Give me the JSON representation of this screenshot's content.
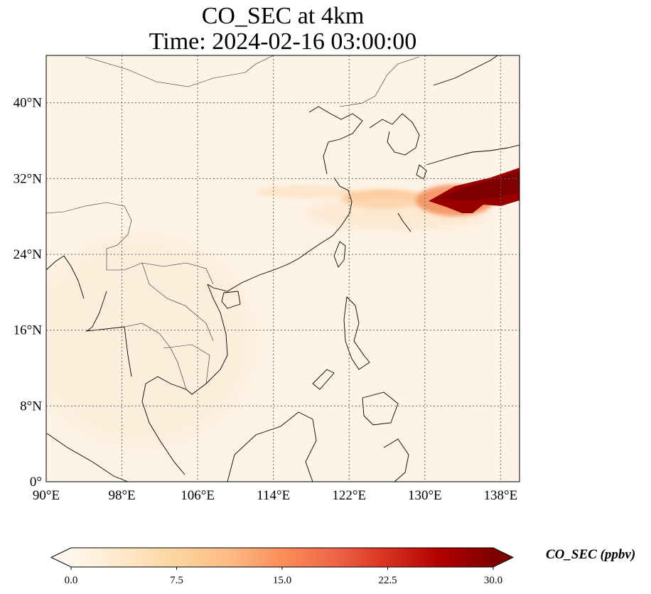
{
  "title": {
    "line1": "CO_SEC at 4km",
    "line2": "Time: 2024-02-16 03:00:00"
  },
  "map": {
    "projection": "PlateCarree",
    "lon_range": [
      90,
      140
    ],
    "lat_range": [
      0,
      45
    ],
    "gridlines": "dotted",
    "lon_ticks": [
      {
        "value": 90,
        "label": "90°E"
      },
      {
        "value": 98,
        "label": "98°E"
      },
      {
        "value": 106,
        "label": "106°E"
      },
      {
        "value": 114,
        "label": "114°E"
      },
      {
        "value": 122,
        "label": "122°E"
      },
      {
        "value": 130,
        "label": "130°E"
      },
      {
        "value": 138,
        "label": "138°E"
      }
    ],
    "lat_ticks": [
      {
        "value": 0,
        "label": "0°"
      },
      {
        "value": 8,
        "label": "8°N"
      },
      {
        "value": 16,
        "label": "16°N"
      },
      {
        "value": 24,
        "label": "24°N"
      },
      {
        "value": 32,
        "label": "32°N"
      },
      {
        "value": 40,
        "label": "40°N"
      }
    ],
    "background_color": "#fdf3e6",
    "coastline_color": "#000000"
  },
  "colorbar": {
    "label": "CO_SEC (ppbv)",
    "colormap": "OrRd",
    "min": 0,
    "max": 30,
    "extend": "both",
    "ticks": [
      {
        "value": 0,
        "label": "0.0"
      },
      {
        "value": 7.5,
        "label": "7.5"
      },
      {
        "value": 15,
        "label": "15.0"
      },
      {
        "value": 22.5,
        "label": "22.5"
      },
      {
        "value": 30,
        "label": "30.0"
      }
    ],
    "stops": [
      "#fff7ec",
      "#fee8c8",
      "#fdd49e",
      "#fdbb84",
      "#fc8d59",
      "#ef6548",
      "#d7301f",
      "#b30000",
      "#7f0000"
    ]
  }
}
